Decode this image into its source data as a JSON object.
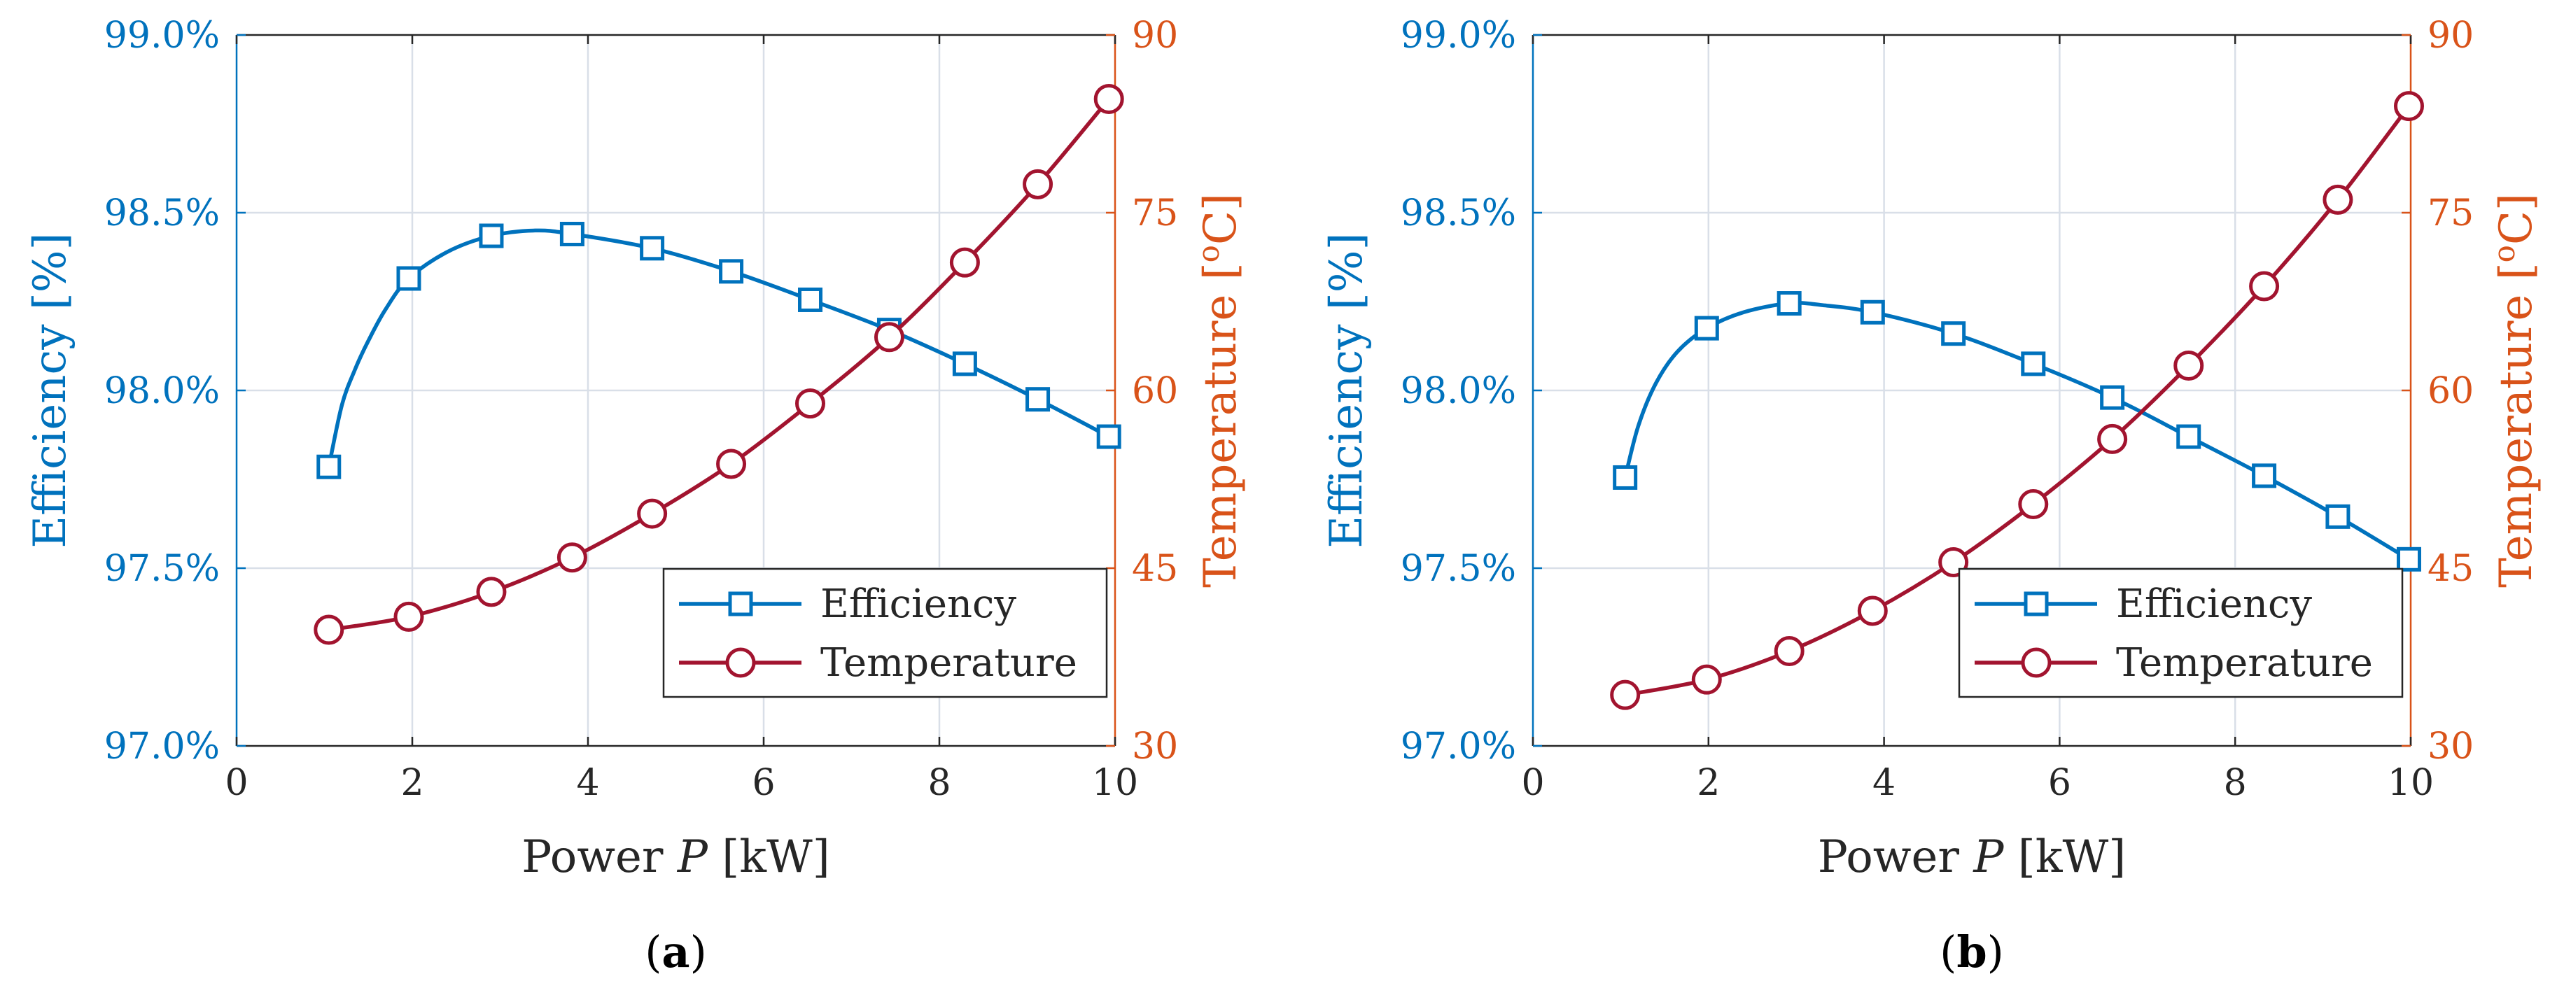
{
  "colors": {
    "efficiency": "#0072BD",
    "temperature": "#A2142F",
    "right_axis": "#D95319",
    "axis": "#262626",
    "grid": "#d9dfe8"
  },
  "chart_data": [
    {
      "type": "line",
      "panel_label": "a",
      "xlabel_text": "Power ",
      "xlabel_var": "P",
      "xlabel_unit": " [kW]",
      "ylabel_left": "Efficiency [%]",
      "ylabel_right_pre": "Temperature [",
      "ylabel_right_sup": "o",
      "ylabel_right_post": "C]",
      "xlim": [
        0,
        10
      ],
      "xticks": [
        0,
        2,
        4,
        6,
        8,
        10
      ],
      "ylim_left": [
        97.0,
        99.0
      ],
      "yticks_left": [
        97.0,
        97.5,
        98.0,
        98.5,
        99.0
      ],
      "ytick_labels_left": [
        "97.0%",
        "97.5%",
        "98.0%",
        "98.5%",
        "99.0%"
      ],
      "ylim_right": [
        30,
        90
      ],
      "yticks_right": [
        30,
        45,
        60,
        75,
        90
      ],
      "ytick_labels_right": [
        "30",
        "45",
        "60",
        "75",
        "90"
      ],
      "grid": true,
      "legend_position": "bottom-right",
      "series": [
        {
          "name": "Efficiency",
          "axis": "left",
          "marker": "square",
          "x": [
            1.05,
            1.96,
            2.9,
            3.82,
            4.73,
            5.63,
            6.53,
            7.43,
            8.29,
            9.12,
            9.93
          ],
          "y": [
            97.785,
            98.315,
            98.435,
            98.44,
            98.4,
            98.335,
            98.255,
            98.17,
            98.075,
            97.975,
            97.87
          ],
          "smooth": [
            [
              1.05,
              97.785
            ],
            [
              1.2,
              97.96
            ],
            [
              1.35,
              98.06
            ],
            [
              1.5,
              98.14
            ],
            [
              1.7,
              98.23
            ],
            [
              1.96,
              98.315
            ],
            [
              2.4,
              98.39
            ],
            [
              2.9,
              98.435
            ],
            [
              3.4,
              98.45
            ],
            [
              3.82,
              98.44
            ],
            [
              4.73,
              98.4
            ],
            [
              5.63,
              98.335
            ],
            [
              6.53,
              98.255
            ],
            [
              7.43,
              98.17
            ],
            [
              8.29,
              98.075
            ],
            [
              9.12,
              97.975
            ],
            [
              9.93,
              97.87
            ]
          ]
        },
        {
          "name": "Temperature",
          "axis": "right",
          "marker": "circle",
          "x": [
            1.05,
            1.96,
            2.9,
            3.82,
            4.73,
            5.63,
            6.53,
            7.43,
            8.29,
            9.12,
            9.93
          ],
          "y": [
            39.8,
            40.9,
            43.0,
            45.9,
            49.6,
            53.8,
            58.9,
            64.5,
            70.8,
            77.4,
            84.6
          ],
          "smooth": [
            [
              1.05,
              39.8
            ],
            [
              1.96,
              40.9
            ],
            [
              2.9,
              43.0
            ],
            [
              3.82,
              45.9
            ],
            [
              4.73,
              49.6
            ],
            [
              5.63,
              53.8
            ],
            [
              6.53,
              58.9
            ],
            [
              7.43,
              64.5
            ],
            [
              8.29,
              70.8
            ],
            [
              9.12,
              77.4
            ],
            [
              9.93,
              84.6
            ]
          ]
        }
      ]
    },
    {
      "type": "line",
      "panel_label": "b",
      "xlabel_text": "Power ",
      "xlabel_var": "P",
      "xlabel_unit": " [kW]",
      "ylabel_left": "Efficiency [%]",
      "ylabel_right_pre": "Temperature [",
      "ylabel_right_sup": "o",
      "ylabel_right_post": "C]",
      "xlim": [
        0,
        10
      ],
      "xticks": [
        0,
        2,
        4,
        6,
        8,
        10
      ],
      "ylim_left": [
        97.0,
        99.0
      ],
      "yticks_left": [
        97.0,
        97.5,
        98.0,
        98.5,
        99.0
      ],
      "ytick_labels_left": [
        "97.0%",
        "97.5%",
        "98.0%",
        "98.5%",
        "99.0%"
      ],
      "ylim_right": [
        30,
        90
      ],
      "yticks_right": [
        30,
        45,
        60,
        75,
        90
      ],
      "ytick_labels_right": [
        "30",
        "45",
        "60",
        "75",
        "90"
      ],
      "grid": true,
      "legend_position": "bottom-right",
      "series": [
        {
          "name": "Efficiency",
          "axis": "left",
          "marker": "square",
          "x": [
            1.05,
            1.98,
            2.92,
            3.87,
            4.79,
            5.7,
            6.6,
            7.47,
            8.33,
            9.17,
            9.98
          ],
          "y": [
            97.755,
            98.175,
            98.245,
            98.22,
            98.16,
            98.075,
            97.98,
            97.87,
            97.76,
            97.645,
            97.525
          ],
          "smooth": [
            [
              1.05,
              97.755
            ],
            [
              1.2,
              97.9
            ],
            [
              1.4,
              98.02
            ],
            [
              1.65,
              98.11
            ],
            [
              1.98,
              98.175
            ],
            [
              2.4,
              98.22
            ],
            [
              2.92,
              98.245
            ],
            [
              3.3,
              98.24
            ],
            [
              3.87,
              98.22
            ],
            [
              4.79,
              98.16
            ],
            [
              5.7,
              98.075
            ],
            [
              6.6,
              97.98
            ],
            [
              7.47,
              97.87
            ],
            [
              8.33,
              97.76
            ],
            [
              9.17,
              97.645
            ],
            [
              9.98,
              97.525
            ]
          ]
        },
        {
          "name": "Temperature",
          "axis": "right",
          "marker": "circle",
          "x": [
            1.05,
            1.98,
            2.92,
            3.87,
            4.79,
            5.7,
            6.6,
            7.47,
            8.33,
            9.17,
            9.98
          ],
          "y": [
            34.3,
            35.6,
            38.0,
            41.4,
            45.5,
            50.4,
            55.9,
            62.1,
            68.8,
            76.1,
            84.0
          ],
          "smooth": [
            [
              1.05,
              34.3
            ],
            [
              1.98,
              35.6
            ],
            [
              2.92,
              38.0
            ],
            [
              3.87,
              41.4
            ],
            [
              4.79,
              45.5
            ],
            [
              5.7,
              50.4
            ],
            [
              6.6,
              55.9
            ],
            [
              7.47,
              62.1
            ],
            [
              8.33,
              68.8
            ],
            [
              9.17,
              76.1
            ],
            [
              9.98,
              84.0
            ]
          ]
        }
      ]
    }
  ]
}
